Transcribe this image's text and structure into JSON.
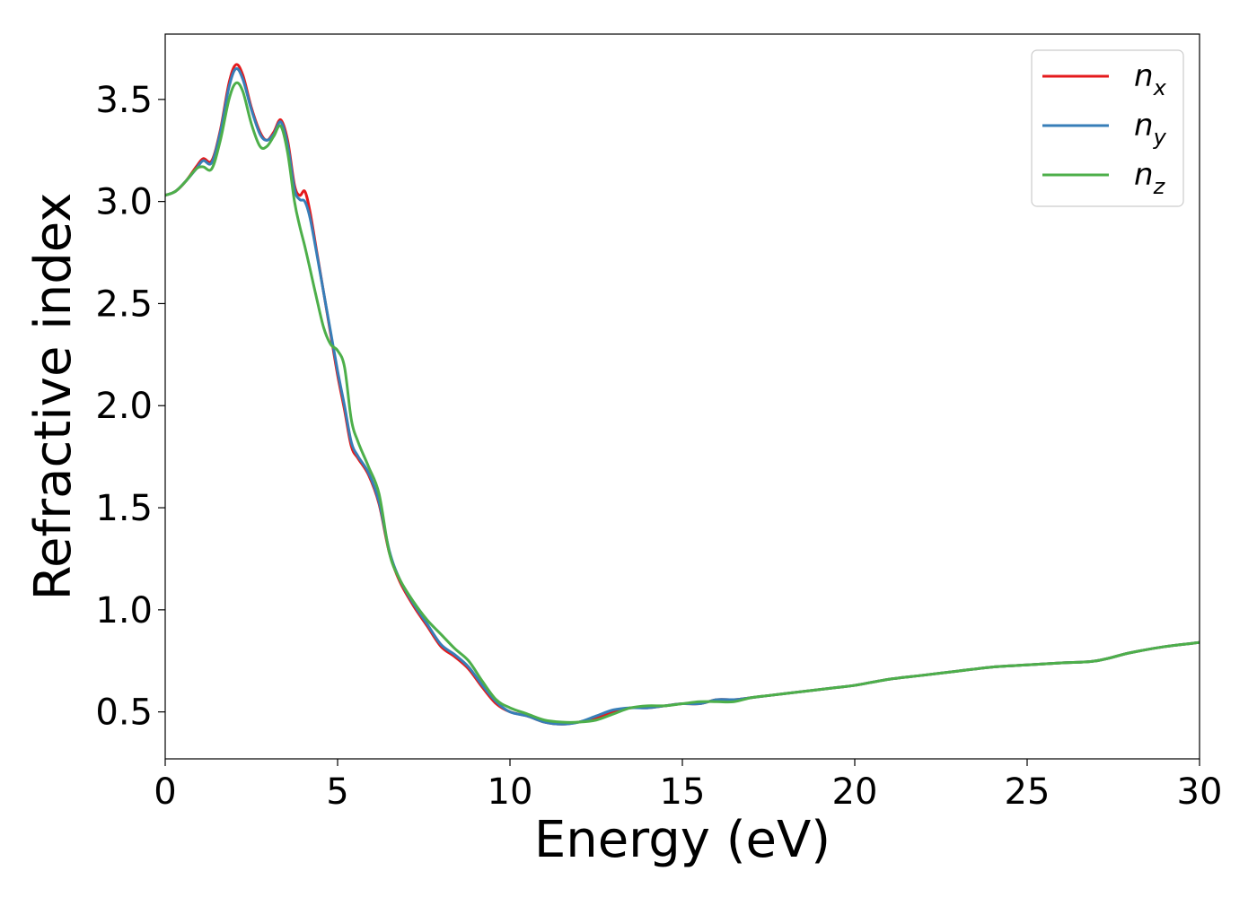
{
  "chart_data": {
    "type": "line",
    "title": "",
    "xlabel": "Energy (eV)",
    "ylabel": "Refractive index",
    "xlim": [
      0,
      30
    ],
    "ylim": [
      0.27,
      3.82
    ],
    "xticks": [
      0,
      5,
      10,
      15,
      20,
      25,
      30
    ],
    "xtick_labels": [
      "0",
      "5",
      "10",
      "15",
      "20",
      "25",
      "30"
    ],
    "yticks": [
      0.5,
      1.0,
      1.5,
      2.0,
      2.5,
      3.0,
      3.5
    ],
    "ytick_labels": [
      "0.5",
      "1.0",
      "1.5",
      "2.0",
      "2.5",
      "3.0",
      "3.5"
    ],
    "grid": false,
    "legend_position": "top-right",
    "series": [
      {
        "name": "x",
        "color": "#e41a1c",
        "x": [
          0,
          0.3,
          0.6,
          0.9,
          1.1,
          1.35,
          1.6,
          1.85,
          2.05,
          2.25,
          2.5,
          2.75,
          2.95,
          3.15,
          3.35,
          3.55,
          3.75,
          3.9,
          4.05,
          4.2,
          4.4,
          4.6,
          4.8,
          5.0,
          5.2,
          5.4,
          5.6,
          5.9,
          6.2,
          6.5,
          6.8,
          7.2,
          7.6,
          8.0,
          8.4,
          8.8,
          9.2,
          9.6,
          10.0,
          10.5,
          11.0,
          11.5,
          12.0,
          12.5,
          13.0,
          13.5,
          14.0,
          14.5,
          15.0,
          15.5,
          16.0,
          16.5,
          17.0,
          17.5,
          18.0,
          18.5,
          19.0,
          19.5,
          20.0,
          21.0,
          22.0,
          23.0,
          24.0,
          25.0,
          26.0,
          27.0,
          28.0,
          29.0,
          30.0
        ],
        "values": [
          3.03,
          3.05,
          3.1,
          3.17,
          3.21,
          3.2,
          3.35,
          3.58,
          3.67,
          3.62,
          3.46,
          3.34,
          3.3,
          3.34,
          3.4,
          3.3,
          3.08,
          3.03,
          3.05,
          2.95,
          2.75,
          2.55,
          2.35,
          2.15,
          1.98,
          1.8,
          1.74,
          1.66,
          1.52,
          1.28,
          1.14,
          1.02,
          0.92,
          0.82,
          0.77,
          0.71,
          0.62,
          0.54,
          0.5,
          0.48,
          0.45,
          0.44,
          0.45,
          0.47,
          0.5,
          0.52,
          0.52,
          0.53,
          0.54,
          0.54,
          0.56,
          0.56,
          0.57,
          0.58,
          0.59,
          0.6,
          0.61,
          0.62,
          0.63,
          0.66,
          0.68,
          0.7,
          0.72,
          0.73,
          0.74,
          0.75,
          0.79,
          0.82,
          0.84
        ]
      },
      {
        "name": "y",
        "color": "#377eb8",
        "x": [
          0,
          0.3,
          0.6,
          0.9,
          1.1,
          1.35,
          1.6,
          1.85,
          2.05,
          2.25,
          2.5,
          2.75,
          2.95,
          3.15,
          3.35,
          3.55,
          3.75,
          3.9,
          4.05,
          4.2,
          4.4,
          4.6,
          4.8,
          5.0,
          5.2,
          5.4,
          5.6,
          5.9,
          6.2,
          6.5,
          6.8,
          7.2,
          7.6,
          8.0,
          8.4,
          8.8,
          9.2,
          9.6,
          10.0,
          10.5,
          11.0,
          11.5,
          12.0,
          12.5,
          13.0,
          13.5,
          14.0,
          14.5,
          15.0,
          15.5,
          16.0,
          16.5,
          17.0,
          17.5,
          18.0,
          18.5,
          19.0,
          19.5,
          20.0,
          21.0,
          22.0,
          23.0,
          24.0,
          25.0,
          26.0,
          27.0,
          28.0,
          29.0,
          30.0
        ],
        "values": [
          3.03,
          3.05,
          3.1,
          3.16,
          3.2,
          3.19,
          3.34,
          3.56,
          3.65,
          3.6,
          3.45,
          3.33,
          3.3,
          3.33,
          3.39,
          3.28,
          3.06,
          3.01,
          3.0,
          2.92,
          2.74,
          2.55,
          2.36,
          2.17,
          2.0,
          1.82,
          1.75,
          1.67,
          1.53,
          1.29,
          1.15,
          1.03,
          0.93,
          0.83,
          0.78,
          0.72,
          0.63,
          0.55,
          0.5,
          0.48,
          0.45,
          0.44,
          0.45,
          0.48,
          0.51,
          0.52,
          0.52,
          0.53,
          0.54,
          0.54,
          0.56,
          0.56,
          0.57,
          0.58,
          0.59,
          0.6,
          0.61,
          0.62,
          0.63,
          0.66,
          0.68,
          0.7,
          0.72,
          0.73,
          0.74,
          0.75,
          0.79,
          0.82,
          0.84
        ]
      },
      {
        "name": "z",
        "color": "#4daf4a",
        "x": [
          0,
          0.3,
          0.6,
          0.9,
          1.1,
          1.35,
          1.6,
          1.85,
          2.05,
          2.25,
          2.5,
          2.75,
          2.95,
          3.15,
          3.35,
          3.55,
          3.75,
          3.9,
          4.05,
          4.2,
          4.4,
          4.6,
          4.8,
          5.0,
          5.2,
          5.4,
          5.6,
          5.9,
          6.2,
          6.5,
          6.8,
          7.2,
          7.6,
          8.0,
          8.4,
          8.8,
          9.2,
          9.6,
          10.0,
          10.5,
          11.0,
          11.5,
          12.0,
          12.5,
          13.0,
          13.5,
          14.0,
          14.5,
          15.0,
          15.5,
          16.0,
          16.5,
          17.0,
          17.5,
          18.0,
          18.5,
          19.0,
          19.5,
          20.0,
          21.0,
          22.0,
          23.0,
          24.0,
          25.0,
          26.0,
          27.0,
          28.0,
          29.0,
          30.0
        ],
        "values": [
          3.03,
          3.05,
          3.1,
          3.16,
          3.17,
          3.16,
          3.3,
          3.5,
          3.58,
          3.54,
          3.38,
          3.27,
          3.27,
          3.32,
          3.37,
          3.24,
          3.0,
          2.88,
          2.78,
          2.67,
          2.52,
          2.38,
          2.3,
          2.27,
          2.19,
          1.93,
          1.82,
          1.7,
          1.57,
          1.28,
          1.15,
          1.04,
          0.95,
          0.88,
          0.81,
          0.75,
          0.65,
          0.56,
          0.52,
          0.49,
          0.46,
          0.45,
          0.45,
          0.46,
          0.49,
          0.52,
          0.53,
          0.53,
          0.54,
          0.55,
          0.55,
          0.55,
          0.57,
          0.58,
          0.59,
          0.6,
          0.61,
          0.62,
          0.63,
          0.66,
          0.68,
          0.7,
          0.72,
          0.73,
          0.74,
          0.75,
          0.79,
          0.82,
          0.84
        ]
      }
    ]
  }
}
